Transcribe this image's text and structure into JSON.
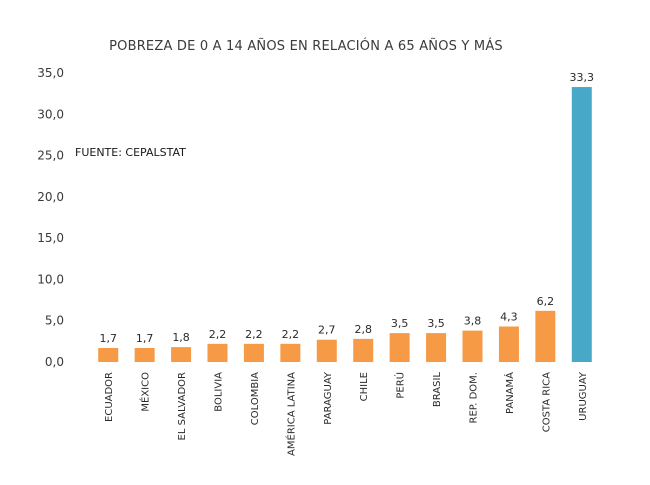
{
  "chart_data": {
    "type": "bar",
    "title": "POBREZA DE 0 A 14 AÑOS EN RELACIÓN A 65 AÑOS Y MÁS",
    "source_note": "FUENTE: CEPALSTAT",
    "categories": [
      "ECUADOR",
      "MÉXICO",
      "EL SALVADOR",
      "BOLIVIA",
      "COLOMBIA",
      "AMÉRICA LATINA",
      "PARAGUAY",
      "CHILE",
      "PERÚ",
      "BRASIL",
      "REP. DOM.",
      "PANAMÁ",
      "COSTA RICA",
      "URUGUAY"
    ],
    "values": [
      1.7,
      1.7,
      1.8,
      2.2,
      2.2,
      2.2,
      2.7,
      2.8,
      3.5,
      3.5,
      3.8,
      4.3,
      6.2,
      33.3
    ],
    "value_labels": [
      "1,7",
      "1,7",
      "1,8",
      "2,2",
      "2,2",
      "2,2",
      "2,7",
      "2,8",
      "3,5",
      "3,5",
      "3,8",
      "4,3",
      "6,2",
      "33,3"
    ],
    "y_ticks": [
      0,
      5,
      10,
      15,
      20,
      25,
      30,
      35
    ],
    "y_tick_labels": [
      "0,0",
      "5,0",
      "10,0",
      "15,0",
      "20,0",
      "25,0",
      "30,0",
      "35,0"
    ],
    "ylim": [
      0,
      35
    ],
    "xlabel": "",
    "ylabel": "",
    "grid": false,
    "colors": {
      "default_bar": "#F79A45",
      "highlight_bar": "#47A9C7"
    },
    "highlight_category": "URUGUAY"
  }
}
